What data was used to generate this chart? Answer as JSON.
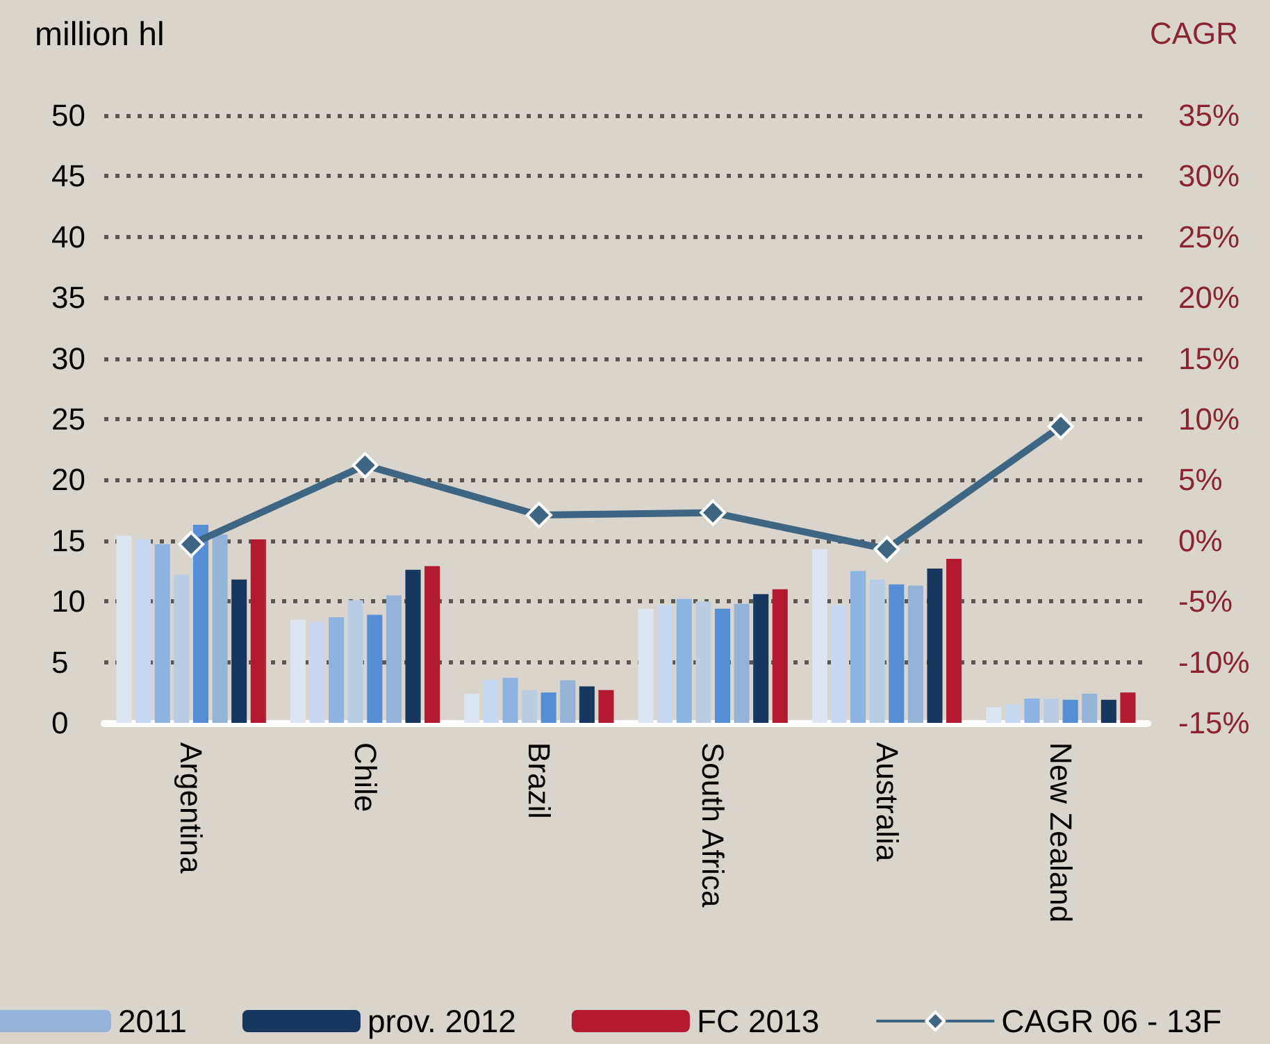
{
  "chart_data": {
    "type": "bar",
    "ylabel": "million hl",
    "y2label": "CAGR",
    "categories": [
      "Argentina",
      "Chile",
      "Brazil",
      "South Africa",
      "Australia",
      "New Zealand"
    ],
    "series": [
      {
        "color": "#dce5f0",
        "values": [
          15.4,
          8.5,
          2.4,
          9.4,
          14.3,
          1.3
        ]
      },
      {
        "color": "#c6d9f0",
        "values": [
          15.1,
          8.3,
          3.5,
          9.7,
          9.7,
          1.5
        ]
      },
      {
        "color": "#8db3e2",
        "values": [
          14.7,
          8.7,
          3.7,
          10.2,
          12.5,
          2.0
        ]
      },
      {
        "color": "#b9cde5",
        "values": [
          12.2,
          10.1,
          2.7,
          10.0,
          11.8,
          2.0
        ]
      },
      {
        "color": "#558ed5",
        "values": [
          16.3,
          8.9,
          2.5,
          9.4,
          11.4,
          1.9
        ]
      },
      {
        "name": "2011",
        "color": "#95b3d7",
        "values": [
          15.5,
          10.5,
          3.5,
          9.8,
          11.3,
          2.4
        ]
      },
      {
        "name": "prov. 2012",
        "color": "#17375e",
        "values": [
          11.8,
          12.6,
          3.0,
          10.6,
          12.7,
          1.9
        ]
      },
      {
        "name": "FC 2013",
        "color": "#b3192f",
        "values": [
          15.1,
          12.9,
          2.7,
          11.0,
          13.5,
          2.5
        ]
      },
      {
        "name": "CAGR 06 - 13F",
        "type": "line",
        "axis": "y2",
        "color": "#3e6683",
        "marker": "diamond",
        "values": [
          -0.3,
          6.2,
          2.1,
          2.3,
          -0.7,
          9.4
        ]
      }
    ],
    "ylim": [
      0,
      50
    ],
    "yticks": [
      0,
      5,
      10,
      15,
      20,
      25,
      30,
      35,
      40,
      45,
      50
    ],
    "y2lim": [
      -15,
      35
    ],
    "y2ticks": [
      {
        "value": -15,
        "label": "-15%"
      },
      {
        "value": -10,
        "label": "-10%"
      },
      {
        "value": -5,
        "label": "-5%"
      },
      {
        "value": 0,
        "label": "0%"
      },
      {
        "value": 5,
        "label": "5%"
      },
      {
        "value": 10,
        "label": "10%"
      },
      {
        "value": 15,
        "label": "15%"
      },
      {
        "value": 20,
        "label": "20%"
      },
      {
        "value": 25,
        "label": "25%"
      },
      {
        "value": 30,
        "label": "30%"
      },
      {
        "value": 35,
        "label": "35%"
      }
    ],
    "grid": "y",
    "legend": "bottom left"
  }
}
